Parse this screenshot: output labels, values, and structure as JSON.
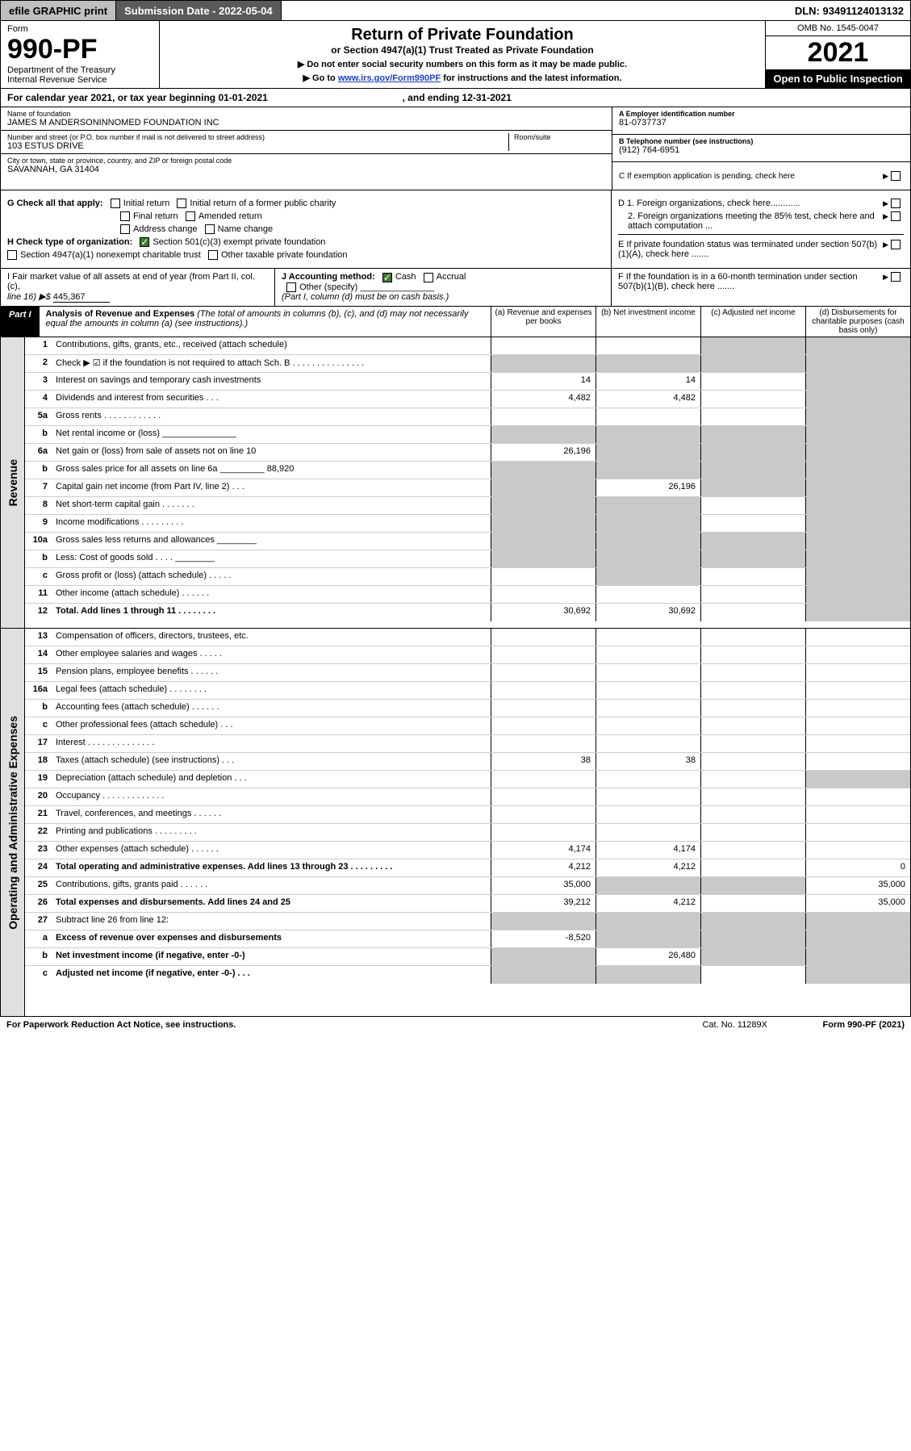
{
  "topstrip": {
    "efile": "efile GRAPHIC print",
    "submission_label": "Submission Date - 2022-05-04",
    "dln_label": "DLN: 93491124013132"
  },
  "header": {
    "form_word": "Form",
    "form_number": "990-PF",
    "dept1": "Department of the Treasury",
    "dept2": "Internal Revenue Service",
    "title": "Return of Private Foundation",
    "subtitle": "or Section 4947(a)(1) Trust Treated as Private Foundation",
    "note1": "▶ Do not enter social security numbers on this form as it may be made public.",
    "note2": "▶ Go to ",
    "note2_link": "www.irs.gov/Form990PF",
    "note2_tail": " for instructions and the latest information.",
    "omb": "OMB No. 1545-0047",
    "year": "2021",
    "open": "Open to Public Inspection"
  },
  "calendar": {
    "text_a": "For calendar year 2021, or tax year beginning 01-01-2021",
    "text_b": ", and ending 12-31-2021"
  },
  "info": {
    "name_lbl": "Name of foundation",
    "name_val": "JAMES M ANDERSONINNOMED FOUNDATION INC",
    "addr_lbl": "Number and street (or P.O. box number if mail is not delivered to street address)",
    "addr_val": "103 ESTUS DRIVE",
    "room_lbl": "Room/suite",
    "city_lbl": "City or town, state or province, country, and ZIP or foreign postal code",
    "city_val": "SAVANNAH, GA  31404",
    "a_lbl": "A Employer identification number",
    "a_val": "81-0737737",
    "b_lbl": "B Telephone number (see instructions)",
    "b_val": "(912) 764-6951",
    "c_lbl": "C If exemption application is pending, check here"
  },
  "checks": {
    "g_lbl": "G Check all that apply:",
    "g_opts": [
      "Initial return",
      "Initial return of a former public charity",
      "Final return",
      "Amended return",
      "Address change",
      "Name change"
    ],
    "h_lbl": "H Check type of organization:",
    "h1": "Section 501(c)(3) exempt private foundation",
    "h2": "Section 4947(a)(1) nonexempt charitable trust",
    "h3": "Other taxable private foundation",
    "d1": "D 1. Foreign organizations, check here............",
    "d2": "2. Foreign organizations meeting the 85% test, check here and attach computation ...",
    "e": "E  If private foundation status was terminated under section 507(b)(1)(A), check here .......",
    "i_lbl": "I Fair market value of all assets at end of year (from Part II, col. (c),",
    "i_line": "line 16) ▶$",
    "i_val": "445,367",
    "j_lbl": "J Accounting method:",
    "j_cash": "Cash",
    "j_accr": "Accrual",
    "j_other": "Other (specify)",
    "j_note": "(Part I, column (d) must be on cash basis.)",
    "f": "F  If the foundation is in a 60-month termination under section 507(b)(1)(B), check here ......."
  },
  "part1": {
    "tag": "Part I",
    "title": "Analysis of Revenue and Expenses",
    "title_note": " (The total of amounts in columns (b), (c), and (d) may not necessarily equal the amounts in column (a) (see instructions).)",
    "col_a": "(a)  Revenue and expenses per books",
    "col_b": "(b)  Net investment income",
    "col_c": "(c)  Adjusted net income",
    "col_d": "(d)  Disbursements for charitable purposes (cash basis only)"
  },
  "vlabels": {
    "revenue": "Revenue",
    "expenses": "Operating and Administrative Expenses"
  },
  "rows_rev": [
    {
      "n": "1",
      "l": "Contributions, gifts, grants, etc., received (attach schedule)",
      "a": "",
      "b": "",
      "c": "grey",
      "d": "grey"
    },
    {
      "n": "2",
      "l": "Check ▶ ☑ if the foundation is not required to attach Sch. B     .  .  .  .  .  .  .  .  .  .  .  .  .  .  .",
      "a": "grey",
      "b": "grey",
      "c": "grey",
      "d": "grey"
    },
    {
      "n": "3",
      "l": "Interest on savings and temporary cash investments",
      "a": "14",
      "b": "14",
      "c": "",
      "d": "grey"
    },
    {
      "n": "4",
      "l": "Dividends and interest from securities    .    .    .",
      "a": "4,482",
      "b": "4,482",
      "c": "",
      "d": "grey"
    },
    {
      "n": "5a",
      "l": "Gross rents    .   .   .   .   .   .   .   .   .   .   .   .",
      "a": "",
      "b": "",
      "c": "",
      "d": "grey"
    },
    {
      "n": "b",
      "l": "Net rental income or (loss)  _______________",
      "a": "grey",
      "b": "grey",
      "c": "grey",
      "d": "grey"
    },
    {
      "n": "6a",
      "l": "Net gain or (loss) from sale of assets not on line 10",
      "a": "26,196",
      "b": "grey",
      "c": "grey",
      "d": "grey"
    },
    {
      "n": "b",
      "l": "Gross sales price for all assets on line 6a _________ 88,920",
      "a": "grey",
      "b": "grey",
      "c": "grey",
      "d": "grey"
    },
    {
      "n": "7",
      "l": "Capital gain net income (from Part IV, line 2)    .   .   .",
      "a": "grey",
      "b": "26,196",
      "c": "grey",
      "d": "grey"
    },
    {
      "n": "8",
      "l": "Net short-term capital gain   .   .   .   .   .   .   .",
      "a": "grey",
      "b": "grey",
      "c": "",
      "d": "grey"
    },
    {
      "n": "9",
      "l": "Income modifications  .   .   .   .   .   .   .   .   .",
      "a": "grey",
      "b": "grey",
      "c": "",
      "d": "grey"
    },
    {
      "n": "10a",
      "l": "Gross sales less returns and allowances  ________",
      "a": "grey",
      "b": "grey",
      "c": "grey",
      "d": "grey"
    },
    {
      "n": "b",
      "l": "Less: Cost of goods sold   .   .   .   .   ________",
      "a": "grey",
      "b": "grey",
      "c": "grey",
      "d": "grey"
    },
    {
      "n": "c",
      "l": "Gross profit or (loss) (attach schedule)    .   .   .   .   .",
      "a": "",
      "b": "grey",
      "c": "",
      "d": "grey"
    },
    {
      "n": "11",
      "l": "Other income (attach schedule)    .   .   .   .   .   .",
      "a": "",
      "b": "",
      "c": "",
      "d": "grey"
    },
    {
      "n": "12",
      "l": "Total. Add lines 1 through 11    .   .   .   .   .   .   .   .",
      "bold": true,
      "a": "30,692",
      "b": "30,692",
      "c": "",
      "d": "grey"
    }
  ],
  "rows_exp": [
    {
      "n": "13",
      "l": "Compensation of officers, directors, trustees, etc.",
      "a": "",
      "b": "",
      "c": "",
      "d": ""
    },
    {
      "n": "14",
      "l": "Other employee salaries and wages   .   .   .   .   .",
      "a": "",
      "b": "",
      "c": "",
      "d": ""
    },
    {
      "n": "15",
      "l": "Pension plans, employee benefits   .   .   .   .   .   .",
      "a": "",
      "b": "",
      "c": "",
      "d": ""
    },
    {
      "n": "16a",
      "l": "Legal fees (attach schedule)  .   .   .   .   .   .   .   .",
      "a": "",
      "b": "",
      "c": "",
      "d": ""
    },
    {
      "n": "b",
      "l": "Accounting fees (attach schedule)  .   .   .   .   .   .",
      "a": "",
      "b": "",
      "c": "",
      "d": ""
    },
    {
      "n": "c",
      "l": "Other professional fees (attach schedule)    .   .   .",
      "a": "",
      "b": "",
      "c": "",
      "d": ""
    },
    {
      "n": "17",
      "l": "Interest  .   .   .   .   .   .   .   .   .   .   .   .   .   .",
      "a": "",
      "b": "",
      "c": "",
      "d": ""
    },
    {
      "n": "18",
      "l": "Taxes (attach schedule) (see instructions)    .   .   .",
      "a": "38",
      "b": "38",
      "c": "",
      "d": ""
    },
    {
      "n": "19",
      "l": "Depreciation (attach schedule) and depletion    .   .   .",
      "a": "",
      "b": "",
      "c": "",
      "d": "grey"
    },
    {
      "n": "20",
      "l": "Occupancy  .   .   .   .   .   .   .   .   .   .   .   .   .",
      "a": "",
      "b": "",
      "c": "",
      "d": ""
    },
    {
      "n": "21",
      "l": "Travel, conferences, and meetings  .   .   .   .   .   .",
      "a": "",
      "b": "",
      "c": "",
      "d": ""
    },
    {
      "n": "22",
      "l": "Printing and publications  .   .   .   .   .   .   .   .   .",
      "a": "",
      "b": "",
      "c": "",
      "d": ""
    },
    {
      "n": "23",
      "l": "Other expenses (attach schedule)  .   .   .   .   .   .",
      "a": "4,174",
      "b": "4,174",
      "c": "",
      "d": ""
    },
    {
      "n": "24",
      "l": "Total operating and administrative expenses. Add lines 13 through 23   .   .   .   .   .   .   .   .   .",
      "bold": true,
      "a": "4,212",
      "b": "4,212",
      "c": "",
      "d": "0"
    },
    {
      "n": "25",
      "l": "Contributions, gifts, grants paid    .   .   .   .   .   .",
      "a": "35,000",
      "b": "grey",
      "c": "grey",
      "d": "35,000"
    },
    {
      "n": "26",
      "l": "Total expenses and disbursements. Add lines 24 and 25",
      "bold": true,
      "a": "39,212",
      "b": "4,212",
      "c": "",
      "d": "35,000"
    },
    {
      "n": "27",
      "l": "Subtract line 26 from line 12:",
      "a": "grey",
      "b": "grey",
      "c": "grey",
      "d": "grey"
    },
    {
      "n": "a",
      "l": "Excess of revenue over expenses and disbursements",
      "bold": true,
      "a": "-8,520",
      "b": "grey",
      "c": "grey",
      "d": "grey"
    },
    {
      "n": "b",
      "l": "Net investment income (if negative, enter -0-)",
      "bold": true,
      "a": "grey",
      "b": "26,480",
      "c": "grey",
      "d": "grey"
    },
    {
      "n": "c",
      "l": "Adjusted net income (if negative, enter -0-)   .   .   .",
      "bold": true,
      "a": "grey",
      "b": "grey",
      "c": "",
      "d": "grey"
    }
  ],
  "footer": {
    "left": "For Paperwork Reduction Act Notice, see instructions.",
    "cat": "Cat. No. 11289X",
    "form": "Form 990-PF (2021)"
  }
}
